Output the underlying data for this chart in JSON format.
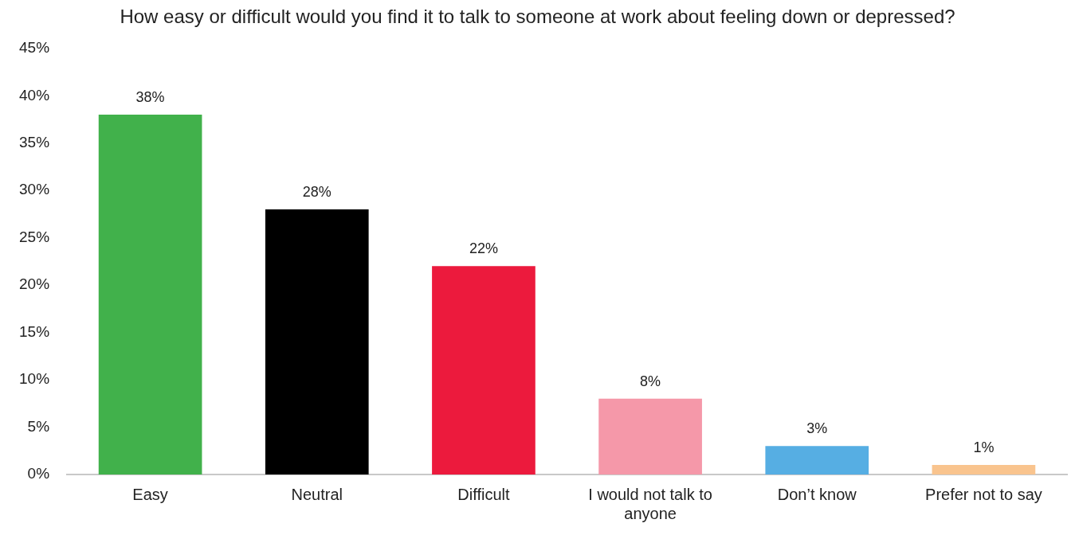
{
  "chart_data": {
    "type": "bar",
    "title": "How easy or difficult would you find it to talk to someone at work about feeling down or depressed?",
    "categories": [
      "Easy",
      "Neutral",
      "Difficult",
      "I would not talk to anyone",
      "Don’t know",
      "Prefer not to say"
    ],
    "values": [
      38,
      28,
      22,
      8,
      3,
      1
    ],
    "colors": [
      "#41b14b",
      "#000000",
      "#ec1a3d",
      "#f598a9",
      "#56aee3",
      "#f9c48e"
    ],
    "value_labels": [
      "38%",
      "28%",
      "22%",
      "8%",
      "3%",
      "1%"
    ],
    "ylim": [
      0,
      45
    ],
    "yticks": [
      {
        "value": 0,
        "label": "0%"
      },
      {
        "value": 5,
        "label": "5%"
      },
      {
        "value": 10,
        "label": "10%"
      },
      {
        "value": 15,
        "label": "15%"
      },
      {
        "value": 20,
        "label": "20%"
      },
      {
        "value": 25,
        "label": "25%"
      },
      {
        "value": 30,
        "label": "30%"
      },
      {
        "value": 35,
        "label": "35%"
      },
      {
        "value": 40,
        "label": "40%"
      },
      {
        "value": 45,
        "label": "45%"
      }
    ],
    "grid": false,
    "legend": false
  }
}
